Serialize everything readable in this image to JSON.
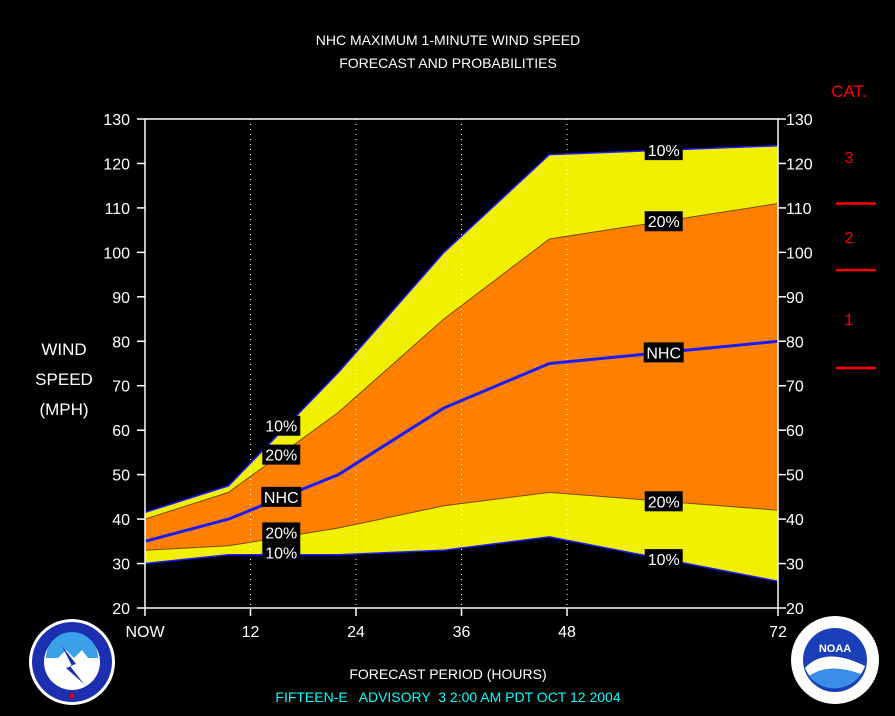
{
  "chart_data": {
    "type": "area",
    "title": "NHC MAXIMUM 1-MINUTE WIND SPEED",
    "subtitle": "FORECAST AND PROBABILITIES",
    "ylabel": [
      "WIND",
      "SPEED",
      "(MPH)"
    ],
    "xlabel": "FORECAST PERIOD (HOURS)",
    "footer": "FIFTEEN-E   ADVISORY  3 2:00 AM PDT OCT 12 2004",
    "ylim": [
      20,
      130
    ],
    "xlim": [
      0,
      72
    ],
    "y_ticks": [
      "20",
      "30",
      "40",
      "50",
      "60",
      "70",
      "80",
      "90",
      "100",
      "110",
      "120",
      "130"
    ],
    "x_ticks": [
      {
        "x": 0,
        "label": "NOW"
      },
      {
        "x": 12,
        "label": "12"
      },
      {
        "x": 24,
        "label": "24"
      },
      {
        "x": 36,
        "label": "36"
      },
      {
        "x": 48,
        "label": "48"
      },
      {
        "x": 72,
        "label": "72"
      }
    ],
    "x": [
      0,
      9.5,
      22,
      34,
      46,
      72
    ],
    "series": [
      {
        "id": "upper10",
        "values": [
          41.5,
          47.5,
          73,
          100,
          122,
          124
        ]
      },
      {
        "id": "upper20",
        "values": [
          40,
          46,
          64,
          85,
          103,
          111
        ]
      },
      {
        "id": "nhc",
        "values": [
          35,
          40,
          50,
          65,
          75,
          80
        ]
      },
      {
        "id": "lower20",
        "values": [
          33,
          34,
          38,
          43,
          46,
          42
        ]
      },
      {
        "id": "lower10",
        "values": [
          30,
          32,
          32,
          33,
          36,
          26
        ]
      }
    ],
    "labels": [
      {
        "text": "10%",
        "x": 15.5,
        "y": 61
      },
      {
        "text": "20%",
        "x": 15.5,
        "y": 54.5
      },
      {
        "text": "NHC",
        "x": 15.5,
        "y": 45
      },
      {
        "text": "20%",
        "x": 15.5,
        "y": 37
      },
      {
        "text": "10%",
        "x": 15.5,
        "y": 32.5
      },
      {
        "text": "10%",
        "x": 59,
        "y": 123
      },
      {
        "text": "20%",
        "x": 59,
        "y": 107
      },
      {
        "text": "NHC",
        "x": 59,
        "y": 77.5
      },
      {
        "text": "20%",
        "x": 59,
        "y": 44
      },
      {
        "text": "10%",
        "x": 59,
        "y": 31
      }
    ],
    "categories_scale": {
      "title": "CAT.",
      "thresholds": [
        74,
        96,
        111
      ],
      "labels": [
        {
          "text": "1",
          "y": 85
        },
        {
          "text": "2",
          "y": 103.5
        },
        {
          "text": "3",
          "y": 121.5
        }
      ]
    },
    "colors": {
      "background": "#000000",
      "plot": "#000000",
      "outer_band": "#f0f000",
      "inner_band": "#ff8000",
      "nhc_line": "#1a1aff",
      "category": "#ff0000",
      "footer": "#00ffff",
      "text": "#ffffff"
    }
  }
}
